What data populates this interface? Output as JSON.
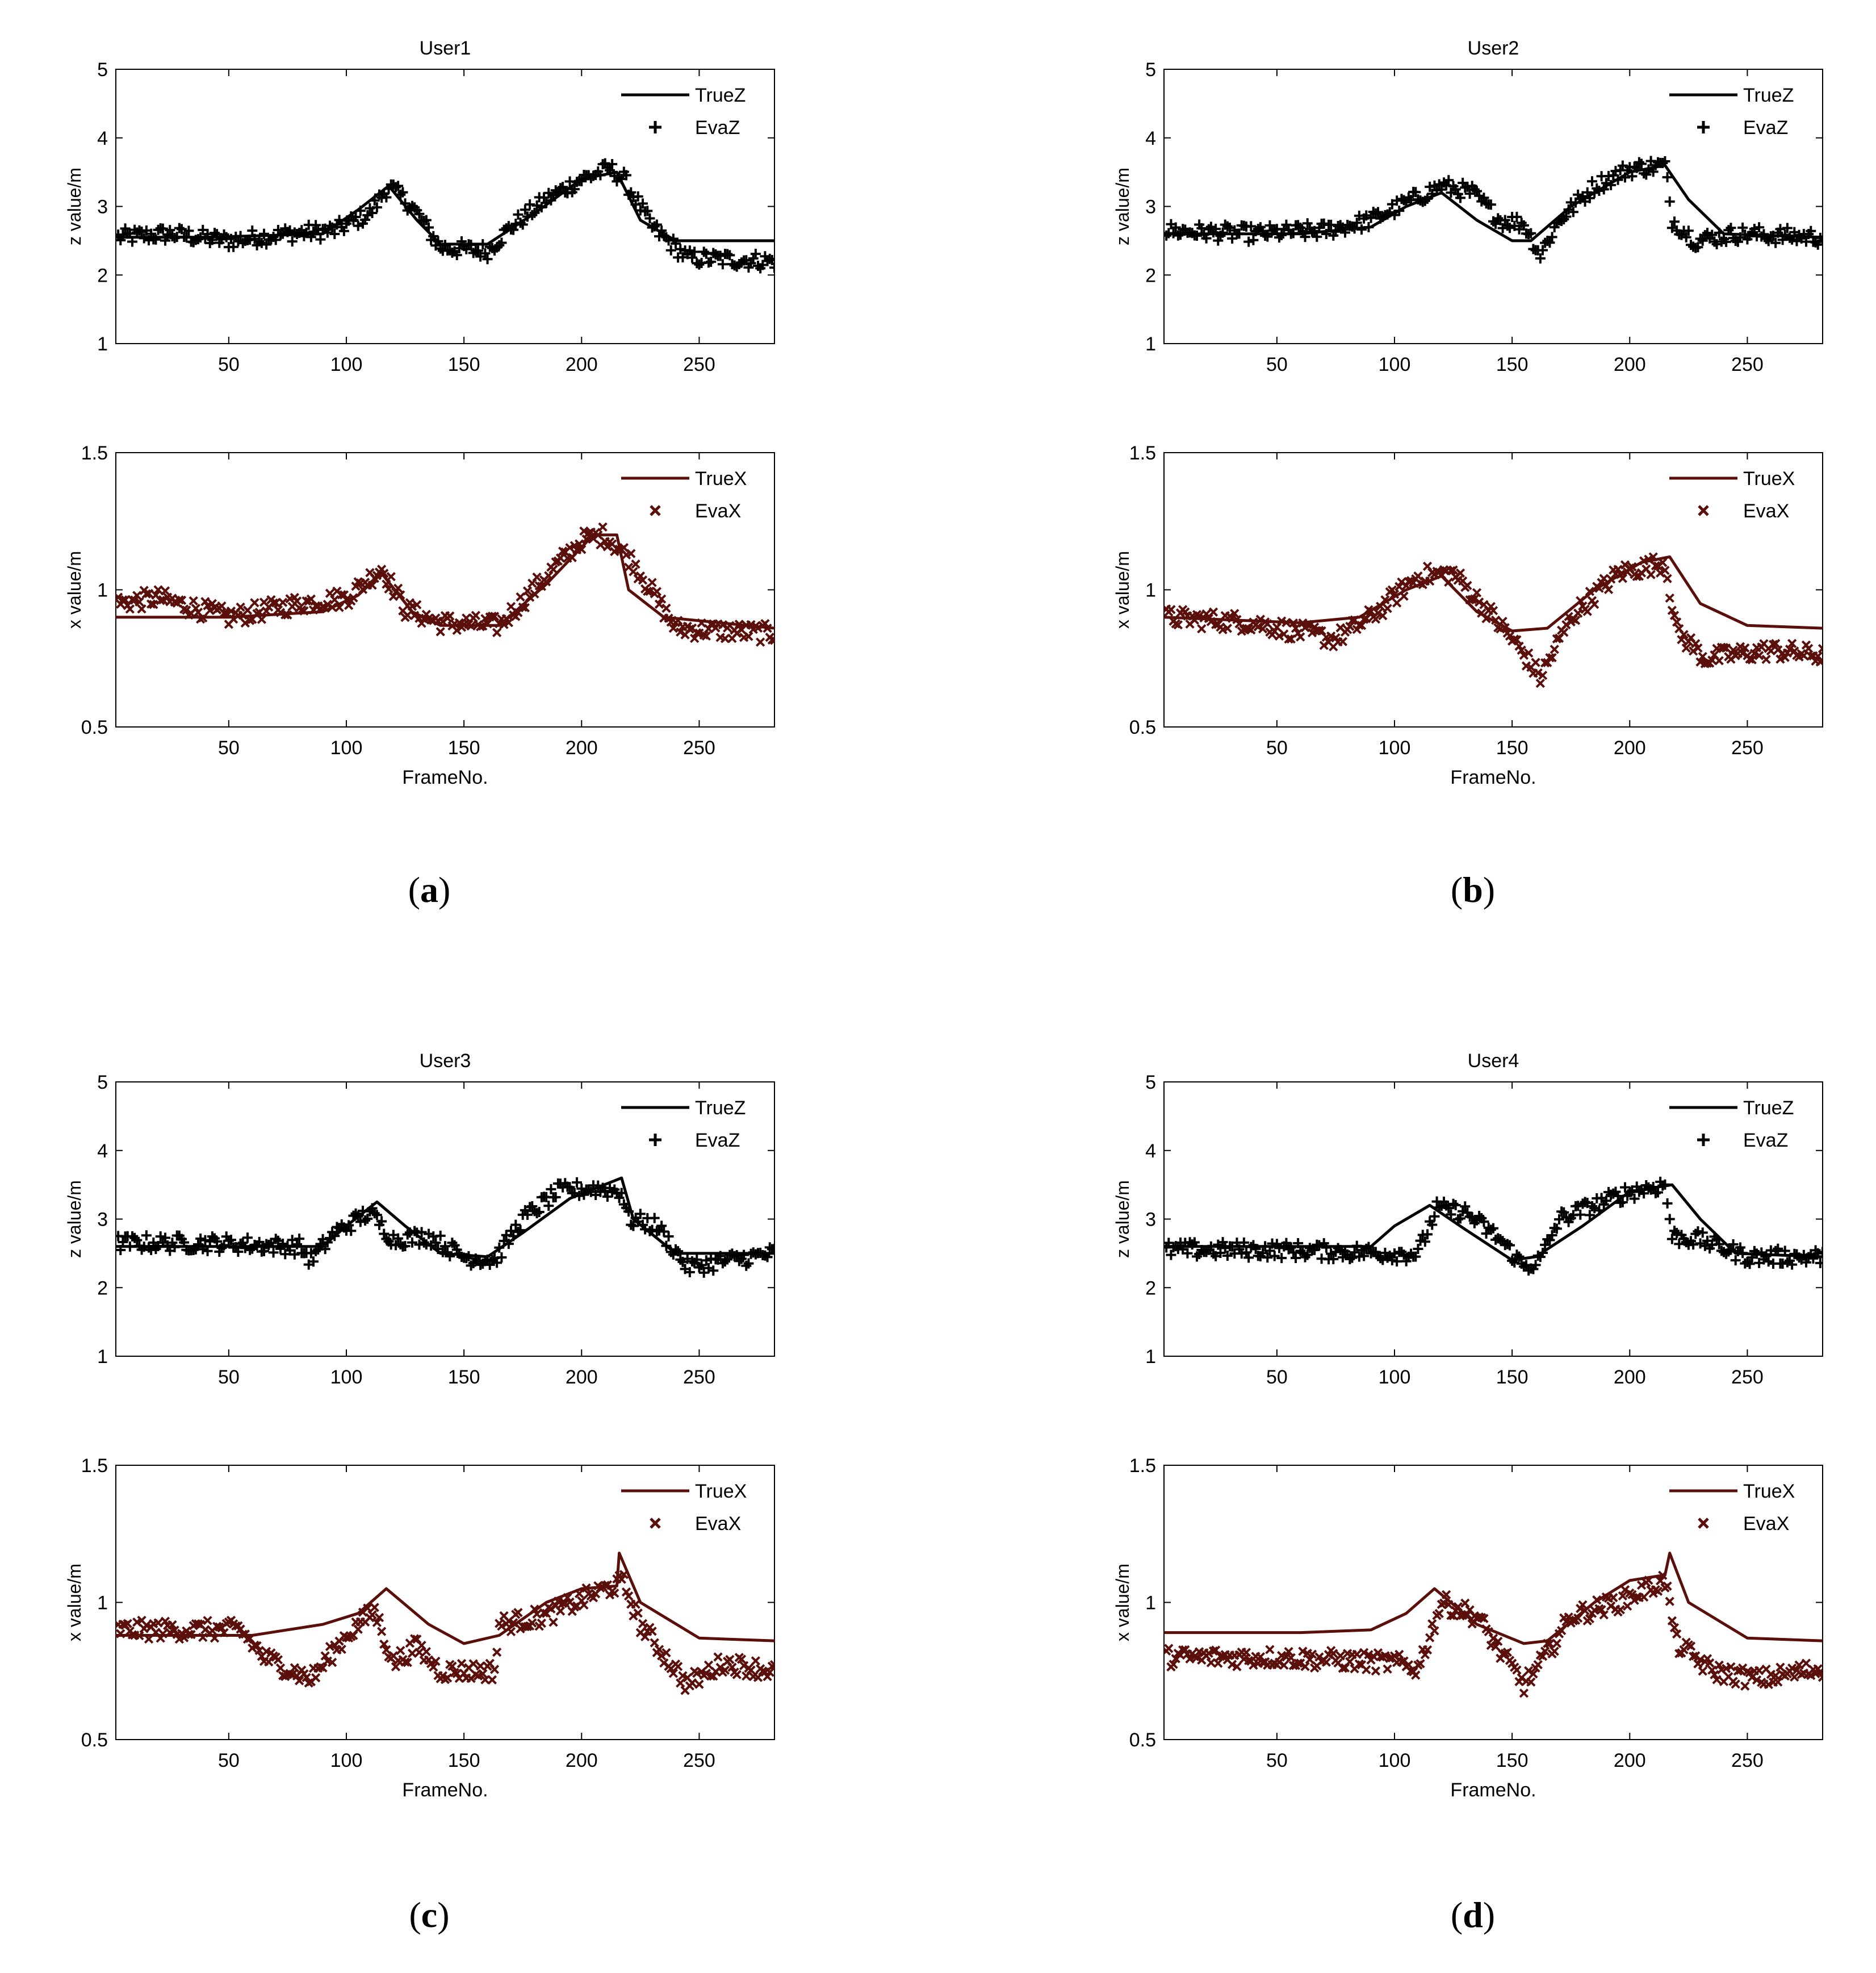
{
  "figure": {
    "captions": [
      {
        "letter": "a",
        "open": "(",
        "close": ")"
      },
      {
        "letter": "b",
        "open": "(",
        "close": ")"
      },
      {
        "letter": "c",
        "open": "(",
        "close": ")"
      },
      {
        "letter": "d",
        "open": "(",
        "close": ")"
      }
    ]
  },
  "colors": {
    "z_series": "#000000",
    "x_series": "#5a0f0a"
  },
  "chart_data": [
    {
      "panel": "a",
      "type": "line",
      "title": "User1",
      "xlabel": "",
      "ylabel": "z value/m",
      "xlim": [
        2,
        282
      ],
      "ylim": [
        1,
        5
      ],
      "xticks": [
        "50",
        "100",
        "150",
        "200",
        "250"
      ],
      "yticks": [
        "1",
        "2",
        "3",
        "4",
        "5"
      ],
      "legend": {
        "location": "top-right",
        "entries": [
          "TrueZ",
          "EvaZ"
        ]
      },
      "series": [
        {
          "name": "TrueZ",
          "style": "line",
          "x": [
            2,
            40,
            90,
            105,
            118,
            130,
            140,
            160,
            180,
            200,
            215,
            225,
            240,
            282
          ],
          "y": [
            2.55,
            2.55,
            2.6,
            2.95,
            3.3,
            2.8,
            2.45,
            2.45,
            2.9,
            3.4,
            3.5,
            2.8,
            2.5,
            2.5
          ]
        },
        {
          "name": "EvaZ",
          "style": "marker-plus",
          "x": [
            2,
            25,
            50,
            75,
            95,
            110,
            118,
            128,
            140,
            160,
            170,
            185,
            200,
            212,
            218,
            230,
            245,
            282
          ],
          "y": [
            2.55,
            2.6,
            2.5,
            2.6,
            2.65,
            2.9,
            3.3,
            3.0,
            2.4,
            2.35,
            2.7,
            3.1,
            3.4,
            3.55,
            3.4,
            2.7,
            2.25,
            2.2
          ]
        }
      ]
    },
    {
      "panel": "a",
      "type": "line",
      "title": "",
      "xlabel": "FrameNo.",
      "ylabel": "x value/m",
      "xlim": [
        2,
        282
      ],
      "ylim": [
        0.5,
        1.5
      ],
      "xticks": [
        "50",
        "100",
        "150",
        "200",
        "250"
      ],
      "yticks": [
        "0.5",
        "1",
        "1.5"
      ],
      "legend": {
        "location": "top-right",
        "entries": [
          "TrueX",
          "EvaX"
        ]
      },
      "series": [
        {
          "name": "TrueX",
          "style": "line",
          "x": [
            2,
            50,
            90,
            105,
            115,
            128,
            140,
            165,
            185,
            205,
            215,
            220,
            235,
            282
          ],
          "y": [
            0.9,
            0.9,
            0.92,
            0.98,
            1.06,
            0.92,
            0.87,
            0.87,
            1.02,
            1.2,
            1.2,
            1.0,
            0.9,
            0.86
          ]
        },
        {
          "name": "EvaX",
          "style": "marker-x",
          "x": [
            2,
            20,
            50,
            80,
            100,
            115,
            125,
            140,
            165,
            185,
            200,
            210,
            222,
            240,
            282
          ],
          "y": [
            0.95,
            0.97,
            0.9,
            0.95,
            0.97,
            1.08,
            0.93,
            0.88,
            0.87,
            1.05,
            1.18,
            1.2,
            1.1,
            0.86,
            0.84
          ]
        }
      ]
    },
    {
      "panel": "b",
      "type": "line",
      "title": "User2",
      "xlabel": "",
      "ylabel": "z value/m",
      "xlim": [
        2,
        282
      ],
      "ylim": [
        1,
        5
      ],
      "xticks": [
        "50",
        "100",
        "150",
        "200",
        "250"
      ],
      "yticks": [
        "1",
        "2",
        "3",
        "4",
        "5"
      ],
      "legend": {
        "location": "top-right",
        "entries": [
          "TrueZ",
          "EvaZ"
        ]
      },
      "series": [
        {
          "name": "TrueZ",
          "style": "line",
          "x": [
            2,
            60,
            90,
            105,
            120,
            135,
            150,
            158,
            175,
            200,
            215,
            225,
            240,
            282
          ],
          "y": [
            2.6,
            2.6,
            2.7,
            3.0,
            3.2,
            2.8,
            2.5,
            2.5,
            3.0,
            3.5,
            3.6,
            3.1,
            2.6,
            2.55
          ]
        },
        {
          "name": "EvaZ",
          "style": "marker-plus",
          "x": [
            2,
            40,
            70,
            90,
            105,
            120,
            133,
            145,
            155,
            162,
            170,
            185,
            200,
            215,
            218,
            228,
            245,
            282
          ],
          "y": [
            2.65,
            2.6,
            2.65,
            2.8,
            3.05,
            3.3,
            3.2,
            2.8,
            2.75,
            2.3,
            2.8,
            3.3,
            3.55,
            3.6,
            2.8,
            2.5,
            2.6,
            2.55
          ]
        }
      ]
    },
    {
      "panel": "b",
      "type": "line",
      "title": "",
      "xlabel": "FrameNo.",
      "ylabel": "x value/m",
      "xlim": [
        2,
        282
      ],
      "ylim": [
        0.5,
        1.5
      ],
      "xticks": [
        "50",
        "100",
        "150",
        "200",
        "250"
      ],
      "yticks": [
        "0.5",
        "1",
        "1.5"
      ],
      "legend": {
        "location": "top-right",
        "entries": [
          "TrueX",
          "EvaX"
        ]
      },
      "series": [
        {
          "name": "TrueX",
          "style": "line",
          "x": [
            2,
            60,
            85,
            105,
            120,
            135,
            150,
            165,
            185,
            205,
            217,
            230,
            250,
            282
          ],
          "y": [
            0.9,
            0.88,
            0.9,
            1.0,
            1.05,
            0.92,
            0.85,
            0.86,
            1.0,
            1.1,
            1.12,
            0.95,
            0.87,
            0.86
          ]
        },
        {
          "name": "EvaX",
          "style": "marker-x",
          "x": [
            2,
            40,
            75,
            90,
            110,
            125,
            140,
            152,
            162,
            175,
            195,
            215,
            220,
            232,
            260,
            282
          ],
          "y": [
            0.9,
            0.88,
            0.82,
            0.9,
            1.05,
            1.06,
            0.92,
            0.8,
            0.68,
            0.9,
            1.06,
            1.1,
            0.85,
            0.75,
            0.78,
            0.76
          ]
        }
      ]
    },
    {
      "panel": "c",
      "type": "line",
      "title": "User3",
      "xlabel": "",
      "ylabel": "z value/m",
      "xlim": [
        2,
        282
      ],
      "ylim": [
        1,
        5
      ],
      "xticks": [
        "50",
        "100",
        "150",
        "200",
        "250"
      ],
      "yticks": [
        "1",
        "2",
        "3",
        "4",
        "5"
      ],
      "legend": {
        "location": "top-right",
        "entries": [
          "TrueZ",
          "EvaZ"
        ]
      },
      "series": [
        {
          "name": "TrueZ",
          "style": "line",
          "x": [
            2,
            60,
            90,
            100,
            113,
            125,
            140,
            160,
            175,
            195,
            217,
            222,
            240,
            282
          ],
          "y": [
            2.6,
            2.6,
            2.6,
            2.9,
            3.25,
            2.9,
            2.5,
            2.45,
            2.8,
            3.3,
            3.6,
            3.0,
            2.5,
            2.5
          ]
        },
        {
          "name": "EvaZ",
          "style": "marker-plus",
          "x": [
            2,
            40,
            80,
            85,
            95,
            110,
            120,
            135,
            150,
            163,
            175,
            190,
            205,
            217,
            220,
            232,
            245,
            282
          ],
          "y": [
            2.65,
            2.65,
            2.6,
            2.4,
            2.8,
            3.1,
            2.7,
            2.75,
            2.45,
            2.4,
            3.0,
            3.4,
            3.45,
            3.4,
            3.0,
            2.9,
            2.3,
            2.5
          ]
        }
      ]
    },
    {
      "panel": "c",
      "type": "line",
      "title": "",
      "xlabel": "FrameNo.",
      "ylabel": "x value/m",
      "xlim": [
        2,
        282
      ],
      "ylim": [
        0.5,
        1.5
      ],
      "xticks": [
        "50",
        "100",
        "150",
        "200",
        "250"
      ],
      "yticks": [
        "0.5",
        "1",
        "1.5"
      ],
      "legend": {
        "location": "top-right",
        "entries": [
          "TrueX",
          "EvaX"
        ]
      },
      "series": [
        {
          "name": "TrueX",
          "style": "line",
          "x": [
            2,
            60,
            90,
            105,
            117,
            135,
            150,
            165,
            185,
            200,
            215,
            216,
            225,
            250,
            282
          ],
          "y": [
            0.88,
            0.88,
            0.92,
            0.96,
            1.05,
            0.92,
            0.85,
            0.88,
            1.0,
            1.05,
            1.06,
            1.18,
            1.0,
            0.87,
            0.86
          ]
        },
        {
          "name": "EvaX",
          "style": "marker-x",
          "x": [
            2,
            30,
            55,
            65,
            85,
            100,
            112,
            120,
            130,
            140,
            163,
            165,
            185,
            210,
            218,
            225,
            245,
            260,
            282
          ],
          "y": [
            0.9,
            0.9,
            0.9,
            0.8,
            0.72,
            0.88,
            0.97,
            0.78,
            0.84,
            0.75,
            0.75,
            0.92,
            0.95,
            1.05,
            1.07,
            0.92,
            0.7,
            0.78,
            0.75
          ]
        }
      ]
    },
    {
      "panel": "d",
      "type": "line",
      "title": "User4",
      "xlabel": "",
      "ylabel": "z value/m",
      "xlim": [
        2,
        282
      ],
      "ylim": [
        1,
        5
      ],
      "xticks": [
        "50",
        "100",
        "150",
        "200",
        "250"
      ],
      "yticks": [
        "1",
        "2",
        "3",
        "4",
        "5"
      ],
      "legend": {
        "location": "top-right",
        "entries": [
          "TrueZ",
          "EvaZ"
        ]
      },
      "series": [
        {
          "name": "TrueZ",
          "style": "line",
          "x": [
            2,
            60,
            90,
            100,
            115,
            130,
            150,
            160,
            180,
            200,
            218,
            230,
            245,
            282
          ],
          "y": [
            2.6,
            2.6,
            2.6,
            2.9,
            3.2,
            2.85,
            2.4,
            2.45,
            2.9,
            3.4,
            3.5,
            3.0,
            2.5,
            2.45
          ]
        },
        {
          "name": "EvaZ",
          "style": "marker-plus",
          "x": [
            2,
            50,
            100,
            110,
            118,
            130,
            145,
            155,
            162,
            170,
            185,
            200,
            215,
            218,
            230,
            250,
            282
          ],
          "y": [
            2.55,
            2.55,
            2.5,
            2.5,
            3.15,
            3.1,
            2.7,
            2.3,
            2.4,
            3.0,
            3.2,
            3.4,
            3.5,
            2.75,
            2.7,
            2.45,
            2.45
          ]
        }
      ]
    },
    {
      "panel": "d",
      "type": "line",
      "title": "",
      "xlabel": "FrameNo.",
      "ylabel": "x value/m",
      "xlim": [
        2,
        282
      ],
      "ylim": [
        0.5,
        1.5
      ],
      "xticks": [
        "50",
        "100",
        "150",
        "200",
        "250"
      ],
      "yticks": [
        "0.5",
        "1",
        "1.5"
      ],
      "legend": {
        "location": "top-right",
        "entries": [
          "TrueX",
          "EvaX"
        ]
      },
      "series": [
        {
          "name": "TrueX",
          "style": "line",
          "x": [
            2,
            60,
            90,
            105,
            117,
            135,
            155,
            165,
            185,
            200,
            215,
            217,
            225,
            250,
            282
          ],
          "y": [
            0.89,
            0.89,
            0.9,
            0.96,
            1.05,
            0.92,
            0.85,
            0.86,
            1.0,
            1.08,
            1.1,
            1.18,
            1.0,
            0.87,
            0.86
          ]
        },
        {
          "name": "EvaX",
          "style": "marker-x",
          "x": [
            2,
            50,
            100,
            110,
            120,
            135,
            145,
            155,
            160,
            175,
            195,
            215,
            220,
            235,
            255,
            282
          ],
          "y": [
            0.8,
            0.8,
            0.78,
            0.76,
            1.0,
            0.95,
            0.82,
            0.7,
            0.75,
            0.95,
            1.0,
            1.08,
            0.85,
            0.75,
            0.72,
            0.76
          ]
        }
      ]
    }
  ]
}
